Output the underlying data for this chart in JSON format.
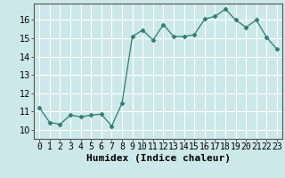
{
  "x": [
    0,
    1,
    2,
    3,
    4,
    5,
    6,
    7,
    8,
    9,
    10,
    11,
    12,
    13,
    14,
    15,
    16,
    17,
    18,
    19,
    20,
    21,
    22,
    23
  ],
  "y": [
    11.2,
    10.4,
    10.3,
    10.8,
    10.7,
    10.8,
    10.85,
    10.2,
    11.45,
    15.1,
    15.45,
    14.9,
    15.75,
    15.1,
    15.1,
    15.2,
    16.05,
    16.2,
    16.6,
    16.0,
    15.6,
    16.0,
    15.05,
    14.4
  ],
  "line_color": "#2e7d6e",
  "marker": "D",
  "marker_size": 2.5,
  "bg_color": "#cce8e8",
  "grid_color": "#ffffff",
  "xlabel": "Humidex (Indice chaleur)",
  "ylim": [
    9.5,
    16.9
  ],
  "xlim": [
    -0.5,
    23.5
  ],
  "yticks": [
    10,
    11,
    12,
    13,
    14,
    15,
    16
  ],
  "xtick_labels": [
    "0",
    "1",
    "2",
    "3",
    "4",
    "5",
    "6",
    "7",
    "8",
    "9",
    "10",
    "11",
    "12",
    "13",
    "14",
    "15",
    "16",
    "17",
    "18",
    "19",
    "20",
    "21",
    "22",
    "23"
  ],
  "xlabel_fontsize": 8,
  "tick_fontsize": 7
}
